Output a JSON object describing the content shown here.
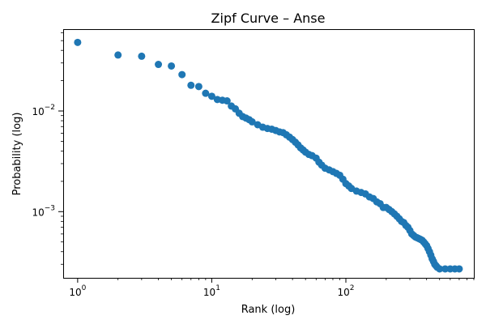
{
  "chart_data": {
    "type": "scatter",
    "title": "Zipf Curve – Anse",
    "xlabel": "Rank (log)",
    "ylabel": "Probability (log)",
    "xscale": "log",
    "yscale": "log",
    "xlim": [
      0.78,
      900
    ],
    "ylim": [
      0.00022,
      0.065
    ],
    "marker_color": "#1f77b4",
    "x_ticks": [
      {
        "value": 1,
        "base": "10",
        "exp": "0"
      },
      {
        "value": 10,
        "base": "10",
        "exp": "1"
      },
      {
        "value": 100,
        "base": "10",
        "exp": "2"
      }
    ],
    "y_ticks": [
      {
        "value": 0.001,
        "base": "10",
        "exp": "−3"
      },
      {
        "value": 0.01,
        "base": "10",
        "exp": "−2"
      }
    ],
    "points": [
      [
        1,
        0.048
      ],
      [
        2,
        0.036
      ],
      [
        3,
        0.035
      ],
      [
        4,
        0.029
      ],
      [
        5,
        0.028
      ],
      [
        6,
        0.023
      ],
      [
        7,
        0.018
      ],
      [
        8,
        0.0175
      ],
      [
        9,
        0.015
      ],
      [
        10,
        0.014
      ],
      [
        11,
        0.013
      ],
      [
        12,
        0.0128
      ],
      [
        13,
        0.0126
      ],
      [
        14,
        0.0112
      ],
      [
        15,
        0.0105
      ],
      [
        16,
        0.0095
      ],
      [
        17,
        0.0088
      ],
      [
        18,
        0.0085
      ],
      [
        19,
        0.0082
      ],
      [
        20,
        0.0078
      ],
      [
        22,
        0.0073
      ],
      [
        24,
        0.0069
      ],
      [
        26,
        0.0067
      ],
      [
        28,
        0.0066
      ],
      [
        30,
        0.0064
      ],
      [
        32,
        0.0062
      ],
      [
        34,
        0.0061
      ],
      [
        36,
        0.0058
      ],
      [
        38,
        0.0055
      ],
      [
        40,
        0.0052
      ],
      [
        42,
        0.0049
      ],
      [
        44,
        0.0046
      ],
      [
        46,
        0.0043
      ],
      [
        48,
        0.0041
      ],
      [
        50,
        0.0039
      ],
      [
        53,
        0.0037
      ],
      [
        56,
        0.0036
      ],
      [
        60,
        0.0034
      ],
      [
        63,
        0.0031
      ],
      [
        66,
        0.0029
      ],
      [
        70,
        0.0027
      ],
      [
        75,
        0.0026
      ],
      [
        80,
        0.0025
      ],
      [
        85,
        0.0024
      ],
      [
        90,
        0.0023
      ],
      [
        95,
        0.0021
      ],
      [
        100,
        0.0019
      ],
      [
        105,
        0.0018
      ],
      [
        110,
        0.0017
      ],
      [
        120,
        0.0016
      ],
      [
        130,
        0.00155
      ],
      [
        140,
        0.0015
      ],
      [
        150,
        0.0014
      ],
      [
        160,
        0.00135
      ],
      [
        170,
        0.00125
      ],
      [
        180,
        0.0012
      ],
      [
        190,
        0.0011
      ],
      [
        200,
        0.0011
      ],
      [
        210,
        0.00105
      ],
      [
        220,
        0.001
      ],
      [
        230,
        0.00095
      ],
      [
        240,
        0.0009
      ],
      [
        250,
        0.00085
      ],
      [
        260,
        0.0008
      ],
      [
        270,
        0.00078
      ],
      [
        280,
        0.00073
      ],
      [
        290,
        0.0007
      ],
      [
        300,
        0.00065
      ],
      [
        310,
        0.0006
      ],
      [
        320,
        0.00058
      ],
      [
        330,
        0.00056
      ],
      [
        340,
        0.00055
      ],
      [
        350,
        0.00054
      ],
      [
        360,
        0.00053
      ],
      [
        370,
        0.00052
      ],
      [
        380,
        0.0005
      ],
      [
        390,
        0.00048
      ],
      [
        400,
        0.00046
      ],
      [
        410,
        0.00043
      ],
      [
        420,
        0.0004
      ],
      [
        430,
        0.00037
      ],
      [
        440,
        0.00034
      ],
      [
        450,
        0.00032
      ],
      [
        460,
        0.0003
      ],
      [
        470,
        0.00029
      ],
      [
        480,
        0.00028
      ],
      [
        500,
        0.00027
      ],
      [
        550,
        0.00027
      ],
      [
        600,
        0.00027
      ],
      [
        650,
        0.00027
      ],
      [
        700,
        0.00027
      ]
    ]
  }
}
